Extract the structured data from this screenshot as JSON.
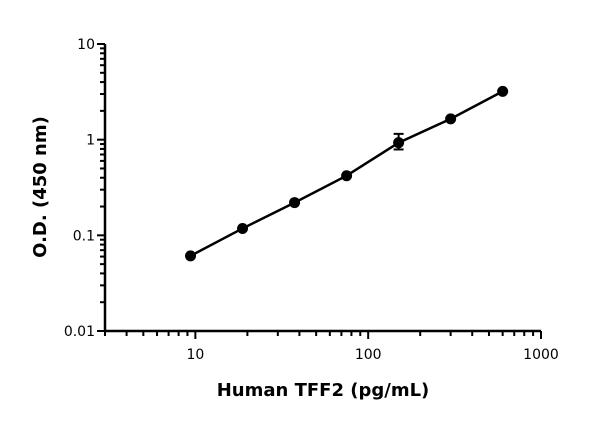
{
  "chart_data": {
    "type": "scatter",
    "title": "",
    "xlabel": "Human TFF2 (pg/mL)",
    "ylabel": "O.D. (450 nm)",
    "x_scale": "log",
    "y_scale": "log",
    "xlim": [
      3,
      1000
    ],
    "ylim": [
      0.01,
      10
    ],
    "x_ticks": [
      {
        "value": 10,
        "label": "10"
      },
      {
        "value": 100,
        "label": "100"
      },
      {
        "value": 1000,
        "label": "1000"
      }
    ],
    "y_ticks": [
      {
        "value": 0.01,
        "label": "0.01"
      },
      {
        "value": 0.1,
        "label": "0.1"
      },
      {
        "value": 1,
        "label": "1"
      },
      {
        "value": 10,
        "label": "10"
      }
    ],
    "grid": false,
    "fit_line": true,
    "marker_color": "#000000",
    "series": [
      {
        "x": [
          9.375,
          18.75,
          37.5,
          75,
          150,
          300,
          600
        ],
        "y": [
          0.061,
          0.118,
          0.22,
          0.42,
          0.93,
          1.65,
          3.2
        ],
        "error_low": [
          null,
          null,
          null,
          null,
          0.79,
          null,
          null
        ],
        "error_high": [
          null,
          null,
          null,
          null,
          1.15,
          null,
          null
        ]
      }
    ]
  }
}
